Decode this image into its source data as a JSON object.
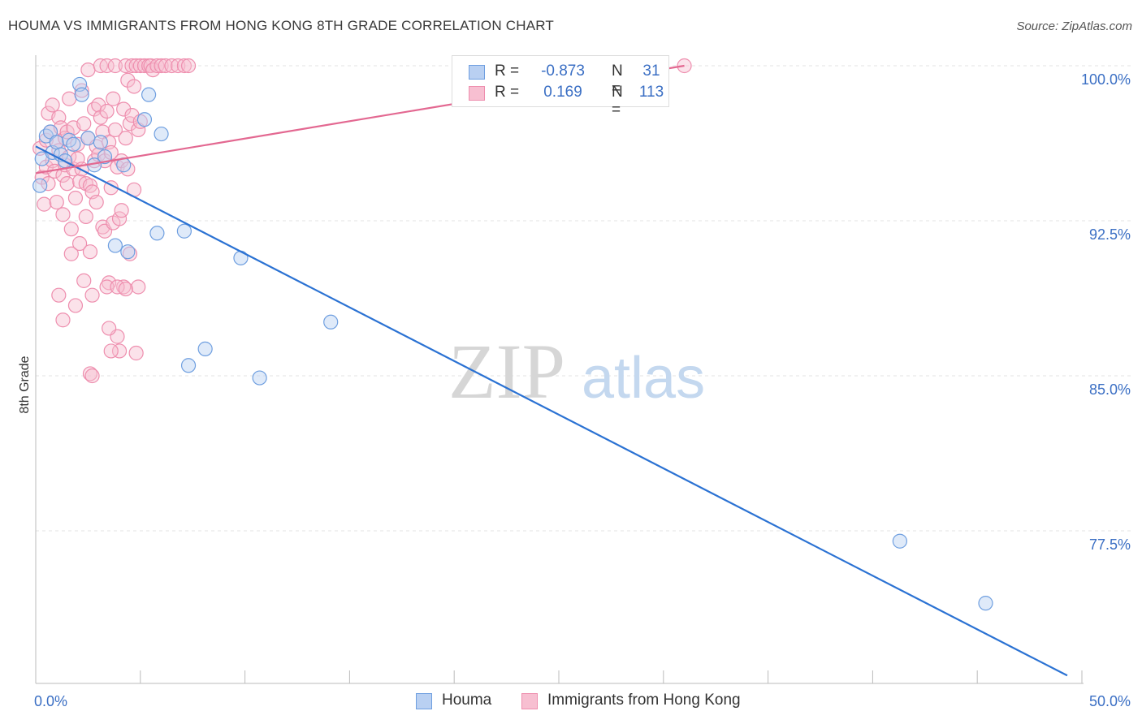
{
  "title": "HOUMA VS IMMIGRANTS FROM HONG KONG 8TH GRADE CORRELATION CHART",
  "source": "Source: ZipAtlas.com",
  "watermark": {
    "zip": "ZIP",
    "atlas": "atlas"
  },
  "colors": {
    "houma": "#6f9fe0",
    "houma_fill": "#b9d0f2",
    "houma_line": "#2b72d3",
    "hk": "#ee8eae",
    "hk_fill": "#f7bfd1",
    "hk_line": "#e36891",
    "axis_text": "#3b6fc4",
    "grid": "#e3e3e3"
  },
  "legend": {
    "rows": [
      {
        "r_label": "R =",
        "r_value": "-0.873",
        "n_label": "N =",
        "n_value": "31"
      },
      {
        "r_label": "R =",
        "r_value": "0.169",
        "n_label": "N =",
        "n_value": "113"
      }
    ]
  },
  "bottom_legend": [
    "Houma",
    "Immigrants from Hong Kong"
  ],
  "chart_data": {
    "type": "scatter",
    "title": "HOUMA VS IMMIGRANTS FROM HONG KONG 8TH GRADE CORRELATION CHART",
    "xlabel": "",
    "ylabel": "8th Grade",
    "xlim": [
      0,
      50
    ],
    "ylim": [
      70.5,
      101
    ],
    "x_tick_labels": [
      "0.0%",
      "50.0%"
    ],
    "y_ticks": [
      77.5,
      85.0,
      92.5,
      100.0
    ],
    "y_tick_labels": [
      "77.5%",
      "85.0%",
      "92.5%",
      "100.0%"
    ],
    "grid": true,
    "legend_position": "top-center",
    "series": [
      {
        "name": "Houma",
        "x": [
          0.2,
          0.3,
          0.5,
          0.7,
          0.8,
          1.0,
          1.2,
          1.4,
          1.6,
          1.8,
          2.1,
          2.2,
          2.5,
          2.8,
          3.1,
          3.3,
          3.8,
          4.2,
          4.4,
          5.2,
          5.4,
          5.8,
          6.0,
          7.1,
          7.3,
          8.1,
          9.8,
          10.7,
          14.1,
          41.3,
          45.4
        ],
        "y": [
          94.2,
          95.5,
          96.6,
          96.8,
          95.8,
          96.3,
          95.7,
          95.4,
          96.4,
          96.2,
          99.1,
          98.6,
          96.5,
          95.2,
          96.3,
          95.6,
          91.3,
          95.2,
          91.0,
          97.4,
          98.6,
          91.9,
          96.7,
          92.0,
          85.5,
          86.3,
          90.7,
          84.9,
          87.6,
          77.0,
          74.0
        ],
        "trend": {
          "x": [
            0,
            49.3
          ],
          "y": [
            96.1,
            70.5
          ]
        }
      },
      {
        "name": "Immigrants from Hong Kong",
        "x": [
          0.2,
          0.3,
          0.4,
          0.5,
          0.5,
          0.6,
          0.6,
          0.7,
          0.8,
          0.8,
          0.9,
          1.0,
          1.0,
          1.1,
          1.1,
          1.2,
          1.3,
          1.3,
          1.4,
          1.4,
          1.5,
          1.5,
          1.6,
          1.6,
          1.7,
          1.7,
          1.8,
          1.8,
          1.9,
          1.9,
          2.0,
          2.0,
          2.1,
          2.1,
          2.2,
          2.2,
          2.3,
          2.3,
          2.4,
          2.4,
          2.5,
          2.5,
          2.6,
          2.6,
          2.7,
          2.7,
          2.8,
          2.8,
          2.9,
          2.9,
          3.0,
          3.0,
          3.1,
          3.1,
          3.2,
          3.2,
          3.3,
          3.3,
          3.4,
          3.4,
          3.5,
          3.5,
          3.6,
          3.6,
          3.7,
          3.7,
          3.8,
          3.8,
          3.9,
          3.9,
          4.0,
          4.0,
          4.1,
          4.1,
          4.2,
          4.2,
          4.3,
          4.3,
          4.4,
          4.4,
          4.5,
          4.5,
          4.6,
          4.6,
          4.7,
          4.7,
          4.8,
          4.8,
          4.9,
          4.9,
          5.0,
          5.0,
          5.2,
          5.4,
          5.5,
          5.6,
          5.8,
          6.0,
          6.2,
          6.5,
          6.8,
          7.1,
          7.3,
          1.1,
          1.3,
          2.6,
          2.7,
          3.4,
          3.5,
          3.6,
          3.9,
          4.3,
          31.0
        ],
        "y": [
          96.0,
          94.6,
          93.3,
          95.1,
          96.4,
          97.7,
          94.3,
          96.8,
          95.4,
          98.1,
          94.9,
          96.3,
          93.4,
          97.5,
          95.9,
          97.0,
          94.7,
          92.8,
          96.5,
          95.2,
          96.8,
          94.3,
          98.4,
          95.6,
          92.1,
          90.9,
          97.0,
          95.0,
          93.6,
          88.4,
          96.2,
          95.5,
          94.4,
          91.4,
          98.8,
          95.0,
          97.2,
          89.6,
          94.3,
          92.7,
          99.8,
          96.5,
          94.2,
          91.0,
          93.9,
          88.9,
          97.9,
          95.4,
          96.1,
          93.4,
          98.1,
          95.7,
          100.0,
          97.5,
          96.8,
          92.2,
          95.4,
          92.0,
          100.0,
          97.8,
          96.3,
          89.5,
          95.8,
          94.1,
          98.4,
          92.4,
          100.0,
          96.9,
          95.1,
          86.9,
          92.6,
          86.2,
          95.4,
          93.0,
          97.9,
          89.3,
          100.0,
          96.5,
          99.3,
          95.0,
          97.2,
          90.9,
          100.0,
          97.6,
          99.0,
          94.0,
          100.0,
          86.1,
          96.9,
          89.3,
          100.0,
          97.3,
          100.0,
          100.0,
          100.0,
          99.8,
          100.0,
          100.0,
          100.0,
          100.0,
          100.0,
          100.0,
          100.0,
          88.9,
          87.7,
          85.1,
          85.0,
          89.3,
          87.3,
          86.2,
          89.3,
          89.2,
          100.0
        ],
        "trend": {
          "x": [
            0,
            31.0
          ],
          "y": [
            94.8,
            100.0
          ]
        }
      }
    ]
  }
}
